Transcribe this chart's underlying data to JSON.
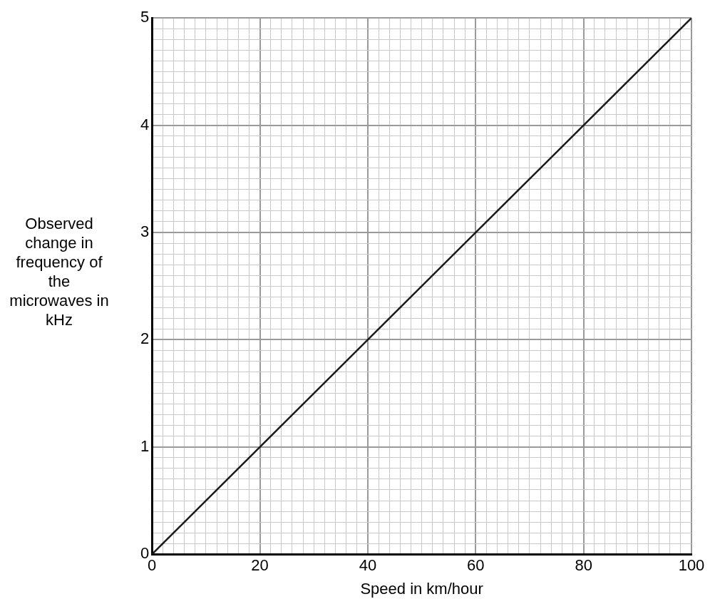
{
  "chart_data": {
    "type": "line",
    "xlabel": "Speed in km/hour",
    "ylabel": "Observed change in frequency of the microwaves in kHz",
    "x": [
      0,
      100
    ],
    "series": [
      {
        "color": "#1a1a1a",
        "values": [
          0,
          5
        ]
      }
    ],
    "xlim": [
      0,
      100
    ],
    "ylim": [
      0,
      5
    ],
    "xticks": [
      0,
      {
        "value": 2,
        "label": null
      },
      {
        "value": 4,
        "label": null
      },
      {
        "value": 6,
        "label": null
      },
      {
        "value": 8,
        "label": null
      },
      {
        "value": 10,
        "label": null
      },
      {
        "value": 12,
        "label": null
      },
      {
        "value": 14,
        "label": null
      },
      {
        "value": 16,
        "label": null
      },
      {
        "value": 18,
        "label": null
      },
      20,
      {
        "value": 22,
        "label": null
      },
      {
        "value": 24,
        "label": null
      },
      {
        "value": 26,
        "label": null
      },
      {
        "value": 28,
        "label": null
      },
      {
        "value": 30,
        "label": null
      },
      {
        "value": 32,
        "label": null
      },
      {
        "value": 34,
        "label": null
      },
      {
        "value": 36,
        "label": null
      },
      {
        "value": 38,
        "label": null
      },
      40,
      {
        "value": 42,
        "label": null
      },
      {
        "value": 44,
        "label": null
      },
      {
        "value": 46,
        "label": null
      },
      {
        "value": 48,
        "label": null
      },
      {
        "value": 50,
        "label": null
      },
      {
        "value": 52,
        "label": null
      },
      {
        "value": 54,
        "label": null
      },
      {
        "value": 56,
        "label": null
      },
      {
        "value": 58,
        "label": null
      },
      60,
      {
        "value": 62,
        "label": null
      },
      {
        "value": 64,
        "label": null
      },
      {
        "value": 66,
        "label": null
      },
      {
        "value": 68,
        "label": null
      },
      {
        "value": 70,
        "label": null
      },
      {
        "value": 72,
        "label": null
      },
      {
        "value": 74,
        "label": null
      },
      {
        "value": 76,
        "label": null
      },
      {
        "value": 78,
        "label": null
      },
      80,
      {
        "value": 82,
        "label": null
      },
      {
        "value": 84,
        "label": null
      },
      {
        "value": 86,
        "label": null
      },
      {
        "value": 88,
        "label": null
      },
      {
        "value": 90,
        "label": null
      },
      {
        "value": 92,
        "label": null
      },
      {
        "value": 94,
        "label": null
      },
      {
        "value": 96,
        "label": null
      },
      {
        "value": 98,
        "label": null
      },
      100
    ],
    "yticks": [
      0,
      {
        "value": 0.1,
        "label": null
      },
      {
        "value": 0.2,
        "label": null
      },
      {
        "value": 0.3,
        "label": null
      },
      {
        "value": 0.4,
        "label": null
      },
      {
        "value": 0.5,
        "label": null
      },
      {
        "value": 0.6,
        "label": null
      },
      {
        "value": 0.7,
        "label": null
      },
      {
        "value": 0.8,
        "label": null
      },
      {
        "value": 0.9,
        "label": null
      },
      1,
      {
        "value": 1.1,
        "label": null
      },
      {
        "value": 1.2,
        "label": null
      },
      {
        "value": 1.3,
        "label": null
      },
      {
        "value": 1.4,
        "label": null
      },
      {
        "value": 1.5,
        "label": null
      },
      {
        "value": 1.6,
        "label": null
      },
      {
        "value": 1.7,
        "label": null
      },
      {
        "value": 1.8,
        "label": null
      },
      {
        "value": 1.9,
        "label": null
      },
      2,
      {
        "value": 2.1,
        "label": null
      },
      {
        "value": 2.2,
        "label": null
      },
      {
        "value": 2.3,
        "label": null
      },
      {
        "value": 2.4,
        "label": null
      },
      {
        "value": 2.5,
        "label": null
      },
      {
        "value": 2.6,
        "label": null
      },
      {
        "value": 2.7,
        "label": null
      },
      {
        "value": 2.8,
        "label": null
      },
      {
        "value": 2.9,
        "label": null
      },
      3,
      {
        "value": 3.1,
        "label": null
      },
      {
        "value": 3.2,
        "label": null
      },
      {
        "value": 3.3,
        "label": null
      },
      {
        "value": 3.4,
        "label": null
      },
      {
        "value": 3.5,
        "label": null
      },
      {
        "value": 3.6,
        "label": null
      },
      {
        "value": 3.7,
        "label": null
      },
      {
        "value": 3.8,
        "label": null
      },
      {
        "value": 3.9,
        "label": null
      },
      4,
      {
        "value": 4.1,
        "label": null
      },
      {
        "value": 4.2,
        "label": null
      },
      {
        "value": 4.3,
        "label": null
      },
      {
        "value": 4.4,
        "label": null
      },
      {
        "value": 4.5,
        "label": null
      },
      {
        "value": 4.6,
        "label": null
      },
      {
        "value": 4.7,
        "label": null
      },
      {
        "value": 4.8,
        "label": null
      },
      {
        "value": 4.9,
        "label": null
      },
      5
    ],
    "grid": true,
    "legend": false,
    "marker": "none",
    "line_style": "solid"
  }
}
